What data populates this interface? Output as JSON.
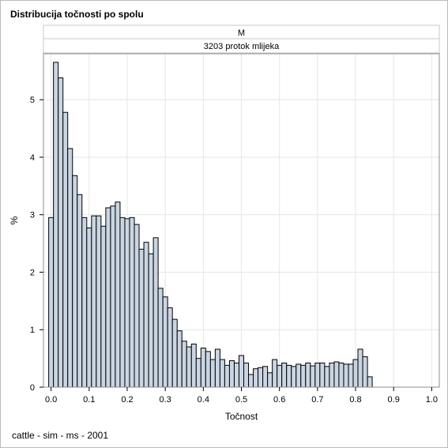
{
  "title": "Distribucija točnosti po spolu",
  "footnote": "cattle - sim - ms - 2001",
  "chart_data": {
    "type": "bar",
    "subtype": "histogram",
    "panel_headers": [
      "M",
      "3203 protok mlijeka"
    ],
    "xlabel": "Točnost",
    "ylabel": "%",
    "xlim": [
      -0.02,
      1.02
    ],
    "ylim": [
      0,
      5.8
    ],
    "x_ticks": [
      "0.0",
      "0.1",
      "0.2",
      "0.3",
      "0.4",
      "0.5",
      "0.6",
      "0.7",
      "0.8",
      "0.9",
      "1.0"
    ],
    "y_ticks": [
      "0",
      "1",
      "2",
      "3",
      "4",
      "5"
    ],
    "grid": true,
    "bin_width": 0.0125,
    "bin_start": -0.00625,
    "values": [
      2.95,
      5.65,
      5.38,
      4.78,
      4.15,
      3.68,
      3.35,
      2.95,
      2.77,
      2.98,
      2.98,
      2.8,
      3.12,
      3.15,
      3.22,
      2.95,
      2.93,
      2.95,
      2.83,
      2.4,
      2.52,
      2.32,
      2.6,
      1.72,
      1.57,
      1.38,
      1.18,
      0.98,
      0.8,
      0.7,
      0.75,
      0.5,
      0.68,
      0.62,
      0.48,
      0.66,
      0.48,
      0.38,
      0.46,
      0.42,
      0.55,
      0.42,
      0.22,
      0.32,
      0.34,
      0.36,
      0.25,
      0.48,
      0.38,
      0.42,
      0.38,
      0.36,
      0.4,
      0.38,
      0.42,
      0.37,
      0.42,
      0.42,
      0.36,
      0.42,
      0.44,
      0.42,
      0.4,
      0.4,
      0.48,
      0.66,
      0.53,
      0.18
    ],
    "colors": {
      "bar_fill": "#cad5e3",
      "bar_stroke": "#000000",
      "grid": "#e6e6e6",
      "header_fill": "#ffffff",
      "axis": "#8c8c8c"
    }
  }
}
